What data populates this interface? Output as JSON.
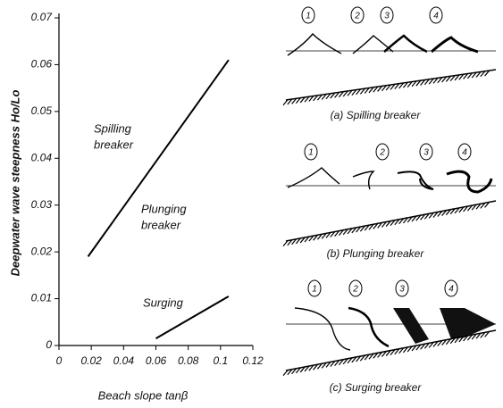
{
  "chart_data": {
    "type": "line",
    "xlabel": "Beach slope tanβ",
    "ylabel": "Deepwater wave steepness Ho/Lo",
    "xlim": [
      0,
      0.12
    ],
    "xticks": [
      0,
      0.02,
      0.04,
      0.06,
      0.08,
      0.1,
      0.12
    ],
    "ylim": [
      0,
      0.07
    ],
    "yticks": [
      0,
      0.01,
      0.02,
      0.03,
      0.04,
      0.05,
      0.06,
      0.07
    ],
    "color": "#000000",
    "series": [
      {
        "x": [
          0.018,
          0.105
        ],
        "values": [
          0.019,
          0.061
        ]
      },
      {
        "x": [
          0.06,
          0.105
        ],
        "values": [
          0.0015,
          0.0105
        ]
      }
    ],
    "annotations": [
      {
        "lines": [
          "Spilling",
          "breaker"
        ]
      },
      {
        "lines": [
          "Plunging",
          "breaker"
        ]
      },
      {
        "lines": [
          "Surging"
        ]
      }
    ]
  },
  "diagrams": [
    {
      "caption": "(a) Spilling breaker",
      "labels": [
        "1",
        "2",
        "3",
        "4"
      ]
    },
    {
      "caption": "(b) Plunging breaker",
      "labels": [
        "1",
        "2",
        "3",
        "4"
      ]
    },
    {
      "caption": "(c) Surging breaker",
      "labels": [
        "1",
        "2",
        "3",
        "4"
      ]
    }
  ]
}
